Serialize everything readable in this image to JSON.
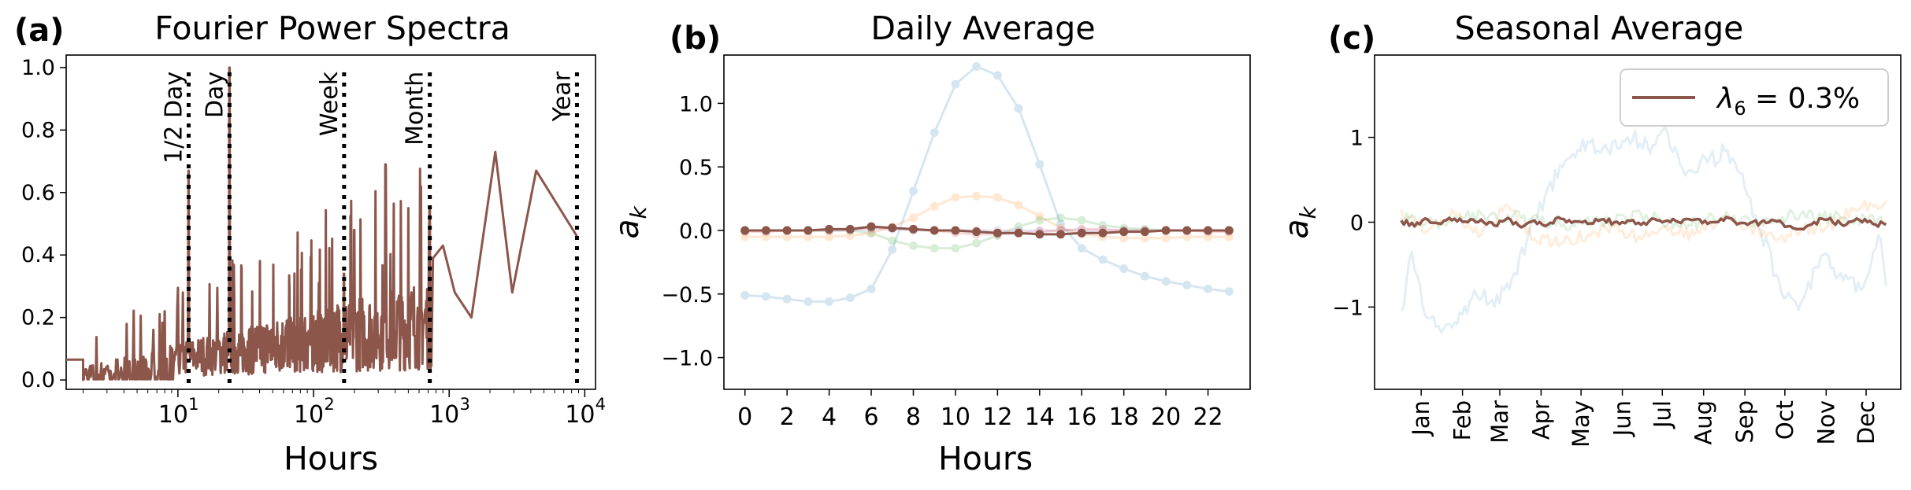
{
  "colors": {
    "main": "#8c564b",
    "blue": "#1f77b4",
    "orange": "#ff7f0e",
    "green": "#2ca02c",
    "red": "#d62728",
    "purple": "#9467bd"
  },
  "panel_a": {
    "tag": "(a)",
    "ytick_labels": [
      "0.0",
      "0.2",
      "0.4",
      "0.6",
      "0.8",
      "1.0"
    ],
    "xtick_base": "10",
    "xtick_exps": [
      "1",
      "2",
      "3",
      "4"
    ]
  },
  "panel_b": {
    "tag": "(b)",
    "ytick_labels": [
      "−1.0",
      "−0.5",
      "0.0",
      "0.5",
      "1.0"
    ],
    "xtick_labels": [
      "0",
      "2",
      "4",
      "6",
      "8",
      "10",
      "12",
      "14",
      "16",
      "18",
      "20",
      "22"
    ]
  },
  "panel_c": {
    "tag": "(c)",
    "ytick_labels": [
      "−1",
      "0",
      "1"
    ],
    "legend_label": "λ₆ = 0.3%",
    "legend_lambda": "λ",
    "legend_sub": "6",
    "legend_value": " = 0.3%"
  },
  "chart_data": [
    {
      "type": "line",
      "title": "Fourier Power Spectra",
      "xlabel": "Hours",
      "ylabel": "",
      "xscale": "log",
      "xlim": [
        1.5,
        12000
      ],
      "ylim": [
        -0.03,
        1.04
      ],
      "grid": false,
      "vlines": [
        {
          "x": 12,
          "label": "1/2 Day"
        },
        {
          "x": 24,
          "label": "Day"
        },
        {
          "x": 168,
          "label": "Week"
        },
        {
          "x": 720,
          "label": "Month"
        },
        {
          "x": 8760,
          "label": "Year"
        }
      ],
      "peaks": [
        {
          "x": 12,
          "y": 0.67
        },
        {
          "x": 24,
          "y": 1.0
        },
        {
          "x": 8,
          "y": 0.22
        },
        {
          "x": 168,
          "y": 0.34
        },
        {
          "x": 200,
          "y": 0.48
        },
        {
          "x": 340,
          "y": 0.69
        },
        {
          "x": 500,
          "y": 0.55
        },
        {
          "x": 720,
          "y": 0.55
        }
      ],
      "low_freq_series": {
        "x": [
          760,
          900,
          1100,
          1460,
          2190,
          2920,
          4380,
          8760
        ],
        "y": [
          0.39,
          0.43,
          0.28,
          0.2,
          0.73,
          0.28,
          0.67,
          0.46
        ]
      }
    },
    {
      "type": "line",
      "title": "Daily Average",
      "xlabel": "Hours",
      "ylabel": "a_k",
      "xlim": [
        -1,
        24
      ],
      "ylim": [
        -1.25,
        1.38
      ],
      "grid": false,
      "x": [
        0,
        1,
        2,
        3,
        4,
        5,
        6,
        7,
        8,
        9,
        10,
        11,
        12,
        13,
        14,
        15,
        16,
        17,
        18,
        19,
        20,
        21,
        22,
        23
      ],
      "series": [
        {
          "color_key": "blue",
          "alpha": 0.18,
          "values": [
            -0.51,
            -0.52,
            -0.54,
            -0.56,
            -0.56,
            -0.53,
            -0.46,
            -0.15,
            0.31,
            0.77,
            1.15,
            1.29,
            1.22,
            0.96,
            0.52,
            0.05,
            -0.14,
            -0.23,
            -0.3,
            -0.36,
            -0.4,
            -0.43,
            -0.46,
            -0.48
          ]
        },
        {
          "color_key": "orange",
          "alpha": 0.18,
          "values": [
            -0.05,
            -0.05,
            -0.05,
            -0.05,
            -0.05,
            -0.04,
            -0.02,
            0.03,
            0.1,
            0.19,
            0.26,
            0.27,
            0.26,
            0.2,
            0.11,
            0.02,
            -0.03,
            -0.05,
            -0.06,
            -0.06,
            -0.06,
            -0.05,
            -0.05,
            -0.05
          ]
        },
        {
          "color_key": "green",
          "alpha": 0.18,
          "values": [
            0.0,
            0.0,
            0.0,
            0.0,
            0.0,
            0.0,
            -0.02,
            -0.08,
            -0.12,
            -0.14,
            -0.14,
            -0.1,
            -0.04,
            0.03,
            0.08,
            0.1,
            0.08,
            0.04,
            0.02,
            0.01,
            0.0,
            0.0,
            0.0,
            0.0
          ]
        },
        {
          "color_key": "red",
          "alpha": 0.18,
          "values": [
            -0.01,
            -0.01,
            0.0,
            0.0,
            0.0,
            0.01,
            0.02,
            0.02,
            0.01,
            0.0,
            -0.02,
            -0.03,
            -0.03,
            -0.02,
            -0.01,
            0.0,
            0.01,
            0.01,
            0.0,
            0.0,
            0.0,
            0.0,
            -0.01,
            -0.01
          ]
        },
        {
          "color_key": "purple",
          "alpha": 0.18,
          "values": [
            0.0,
            0.0,
            0.0,
            0.0,
            0.0,
            0.0,
            0.01,
            0.01,
            0.0,
            0.0,
            0.0,
            0.0,
            0.0,
            0.0,
            0.0,
            0.0,
            0.0,
            0.0,
            0.0,
            0.0,
            0.0,
            0.0,
            0.0,
            0.0
          ]
        },
        {
          "color_key": "main",
          "alpha": 1.0,
          "values": [
            0.0,
            0.0,
            0.0,
            0.0,
            0.01,
            0.01,
            0.03,
            0.02,
            0.01,
            0.0,
            0.0,
            -0.01,
            -0.02,
            -0.02,
            -0.03,
            -0.03,
            -0.02,
            -0.02,
            -0.01,
            -0.01,
            0.0,
            0.0,
            0.0,
            0.0
          ]
        }
      ]
    },
    {
      "type": "line",
      "title": "Seasonal Average",
      "xlabel": "",
      "ylabel": "a_k",
      "xlim": [
        -20,
        375
      ],
      "ylim": [
        -1.97,
        1.97
      ],
      "grid": false,
      "legend_position": "top-right",
      "month_ticks": {
        "day": [
          15,
          46,
          74,
          105,
          135,
          166,
          196,
          227,
          258,
          288,
          319,
          349
        ],
        "labels": [
          "Jan",
          "Feb",
          "Mar",
          "Apr",
          "May",
          "Jun",
          "Jul",
          "Aug",
          "Sep",
          "Oct",
          "Nov",
          "Dec"
        ]
      },
      "series": [
        {
          "color_key": "blue",
          "alpha": 0.12,
          "x": [
            0,
            8,
            18,
            30,
            42,
            55,
            70,
            85,
            100,
            110,
            125,
            140,
            155,
            170,
            185,
            200,
            215,
            230,
            245,
            258,
            270,
            285,
            300,
            315,
            330,
            345,
            360,
            364
          ],
          "values": [
            -1.05,
            -0.35,
            -1.1,
            -1.3,
            -1.2,
            -0.8,
            -1.0,
            -0.6,
            0.0,
            0.4,
            0.75,
            0.95,
            0.85,
            1.0,
            0.9,
            1.05,
            0.6,
            0.7,
            0.85,
            0.4,
            -0.1,
            -0.8,
            -0.95,
            -0.4,
            -0.6,
            -0.8,
            -0.2,
            -0.75
          ]
        },
        {
          "color_key": "orange",
          "alpha": 0.15,
          "x": [
            0,
            20,
            40,
            60,
            80,
            100,
            120,
            140,
            160,
            180,
            200,
            220,
            240,
            260,
            280,
            300,
            320,
            340,
            364
          ],
          "values": [
            0.15,
            -0.1,
            0.1,
            -0.15,
            0.2,
            -0.2,
            -0.25,
            -0.15,
            -0.05,
            -0.2,
            -0.1,
            -0.15,
            0.05,
            -0.05,
            -0.2,
            -0.1,
            -0.05,
            0.15,
            0.25
          ]
        },
        {
          "color_key": "green",
          "alpha": 0.15,
          "x": [
            0,
            30,
            60,
            90,
            120,
            150,
            180,
            210,
            240,
            270,
            300,
            330,
            364
          ],
          "values": [
            0.05,
            0.0,
            0.1,
            0.05,
            -0.05,
            0.0,
            0.1,
            -0.05,
            0.05,
            0.0,
            0.1,
            0.05,
            0.0
          ]
        },
        {
          "color_key": "main",
          "alpha": 1.0,
          "x": [
            0,
            10,
            20,
            30,
            40,
            50,
            60,
            70,
            80,
            90,
            100,
            110,
            120,
            130,
            140,
            150,
            160,
            170,
            180,
            190,
            200,
            210,
            220,
            230,
            240,
            250,
            260,
            270,
            280,
            290,
            300,
            310,
            320,
            330,
            340,
            350,
            364
          ],
          "values": [
            0.02,
            -0.05,
            0.03,
            -0.02,
            0.04,
            0.0,
            0.03,
            -0.04,
            0.05,
            -0.06,
            0.02,
            -0.03,
            0.04,
            0.01,
            -0.02,
            0.03,
            0.0,
            0.02,
            -0.03,
            0.04,
            0.02,
            -0.01,
            0.03,
            -0.02,
            0.04,
            0.01,
            -0.03,
            0.0,
            0.02,
            -0.05,
            -0.08,
            0.0,
            0.03,
            -0.02,
            0.02,
            0.0,
            -0.03
          ]
        }
      ]
    }
  ]
}
